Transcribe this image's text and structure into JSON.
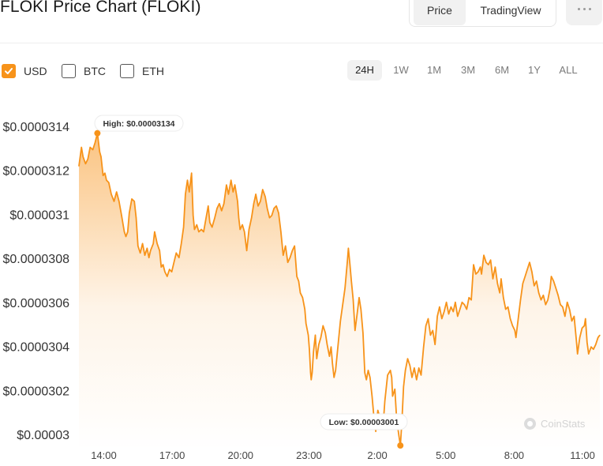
{
  "header": {
    "title": "FLOKI Price Chart (FLOKI)",
    "view_tabs": [
      {
        "label": "Price",
        "active": true
      },
      {
        "label": "TradingView",
        "active": false
      }
    ],
    "more_icon": "more-dots-icon"
  },
  "currencies": [
    {
      "label": "USD",
      "checked": true
    },
    {
      "label": "BTC",
      "checked": false
    },
    {
      "label": "ETH",
      "checked": false
    }
  ],
  "ranges": [
    {
      "label": "24H",
      "active": true
    },
    {
      "label": "1W",
      "active": false
    },
    {
      "label": "1M",
      "active": false
    },
    {
      "label": "3M",
      "active": false
    },
    {
      "label": "6M",
      "active": false
    },
    {
      "label": "1Y",
      "active": false
    },
    {
      "label": "ALL",
      "active": false
    }
  ],
  "watermark": "CoinStats",
  "colors": {
    "line": "#f7931a",
    "checkbox": "#f7931a",
    "active_bg": "#f1f1f1"
  },
  "chart_data": {
    "type": "area",
    "title": "",
    "xlabel": "",
    "ylabel": "",
    "y_tick_labels": [
      "$0.0000314",
      "$0.0000312",
      "$0.000031",
      "$0.0000308",
      "$0.0000306",
      "$0.0000304",
      "$0.0000302",
      "$0.00003"
    ],
    "y_ticks": [
      3.14e-05,
      3.12e-05,
      3.1e-05,
      3.08e-05,
      3.06e-05,
      3.04e-05,
      3.02e-05,
      3e-05
    ],
    "x_tick_labels": [
      "14:00",
      "17:00",
      "20:00",
      "23:00",
      "2:00",
      "5:00",
      "8:00",
      "11:00"
    ],
    "x_ticks": [
      14,
      17,
      20,
      23,
      26,
      29,
      32,
      35
    ],
    "xlim": [
      12.91,
      35.76
    ],
    "ylim": [
      2.999e-05,
      3.147e-05
    ],
    "grid": false,
    "annotations": {
      "high": {
        "label": "High: $0.00003134",
        "x": 13.72,
        "y": 3.134e-05
      },
      "low": {
        "label": "Low: $0.00003001",
        "x": 27.01,
        "y": 3.001e-05
      }
    },
    "series": [
      {
        "values": [
          [
            12.91,
            3.12e-05
          ],
          [
            13.02,
            3.128e-05
          ],
          [
            13.09,
            3.124e-05
          ],
          [
            13.2,
            3.121e-05
          ],
          [
            13.3,
            3.123e-05
          ],
          [
            13.4,
            3.128e-05
          ],
          [
            13.52,
            3.127e-05
          ],
          [
            13.62,
            3.13e-05
          ],
          [
            13.72,
            3.134e-05
          ],
          [
            13.82,
            3.126e-05
          ],
          [
            13.88,
            3.124e-05
          ],
          [
            13.97,
            3.116e-05
          ],
          [
            14.05,
            3.117e-05
          ],
          [
            14.12,
            3.114e-05
          ],
          [
            14.22,
            3.113e-05
          ],
          [
            14.33,
            3.108e-05
          ],
          [
            14.45,
            3.105e-05
          ],
          [
            14.56,
            3.109e-05
          ],
          [
            14.67,
            3.105e-05
          ],
          [
            14.78,
            3.099e-05
          ],
          [
            14.9,
            3.092e-05
          ],
          [
            14.97,
            3.09e-05
          ],
          [
            15.05,
            3.092e-05
          ],
          [
            15.12,
            3.1e-05
          ],
          [
            15.23,
            3.106e-05
          ],
          [
            15.34,
            3.105e-05
          ],
          [
            15.42,
            3.098e-05
          ],
          [
            15.5,
            3.086e-05
          ],
          [
            15.6,
            3.083e-05
          ],
          [
            15.7,
            3.087e-05
          ],
          [
            15.8,
            3.082e-05
          ],
          [
            15.9,
            3.085e-05
          ],
          [
            15.98,
            3.081e-05
          ],
          [
            16.05,
            3.084e-05
          ],
          [
            16.17,
            3.087e-05
          ],
          [
            16.23,
            3.092e-05
          ],
          [
            16.34,
            3.087e-05
          ],
          [
            16.45,
            3.084e-05
          ],
          [
            16.52,
            3.077e-05
          ],
          [
            16.6,
            3.078e-05
          ],
          [
            16.68,
            3.075e-05
          ],
          [
            16.78,
            3.073e-05
          ],
          [
            16.88,
            3.076e-05
          ],
          [
            16.98,
            3.075e-05
          ],
          [
            17.08,
            3.079e-05
          ],
          [
            17.18,
            3.083e-05
          ],
          [
            17.3,
            3.081e-05
          ],
          [
            17.4,
            3.087e-05
          ],
          [
            17.5,
            3.094e-05
          ],
          [
            17.58,
            3.108e-05
          ],
          [
            17.67,
            3.114e-05
          ],
          [
            17.75,
            3.109e-05
          ],
          [
            17.85,
            3.117e-05
          ],
          [
            17.92,
            3.099e-05
          ],
          [
            17.98,
            3.093e-05
          ],
          [
            18.08,
            3.095e-05
          ],
          [
            18.17,
            3.092e-05
          ],
          [
            18.28,
            3.093e-05
          ],
          [
            18.38,
            3.092e-05
          ],
          [
            18.47,
            3.097e-05
          ],
          [
            18.58,
            3.103e-05
          ],
          [
            18.65,
            3.096e-05
          ],
          [
            18.75,
            3.094e-05
          ],
          [
            18.87,
            3.098e-05
          ],
          [
            18.97,
            3.102e-05
          ],
          [
            19.07,
            3.104e-05
          ],
          [
            19.17,
            3.101e-05
          ],
          [
            19.27,
            3.104e-05
          ],
          [
            19.38,
            3.112e-05
          ],
          [
            19.47,
            3.108e-05
          ],
          [
            19.58,
            3.114e-05
          ],
          [
            19.67,
            3.109e-05
          ],
          [
            19.75,
            3.112e-05
          ],
          [
            19.87,
            3.105e-05
          ],
          [
            19.92,
            3.098e-05
          ],
          [
            19.98,
            3.093e-05
          ],
          [
            20.08,
            3.095e-05
          ],
          [
            20.17,
            3.092e-05
          ],
          [
            20.27,
            3.084e-05
          ],
          [
            20.37,
            3.093e-05
          ],
          [
            20.48,
            3.098e-05
          ],
          [
            20.58,
            3.104e-05
          ],
          [
            20.67,
            3.108e-05
          ],
          [
            20.77,
            3.103e-05
          ],
          [
            20.87,
            3.105e-05
          ],
          [
            20.97,
            3.11e-05
          ],
          [
            21.08,
            3.107e-05
          ],
          [
            21.17,
            3.102e-05
          ],
          [
            21.27,
            3.098e-05
          ],
          [
            21.37,
            3.099e-05
          ],
          [
            21.47,
            3.102e-05
          ],
          [
            21.57,
            3.103e-05
          ],
          [
            21.67,
            3.1e-05
          ],
          [
            21.77,
            3.092e-05
          ],
          [
            21.87,
            3.082e-05
          ],
          [
            21.97,
            3.086e-05
          ],
          [
            22.07,
            3.079e-05
          ],
          [
            22.17,
            3.081e-05
          ],
          [
            22.27,
            3.084e-05
          ],
          [
            22.37,
            3.086e-05
          ],
          [
            22.47,
            3.073e-05
          ],
          [
            22.55,
            3.071e-05
          ],
          [
            22.62,
            3.066e-05
          ],
          [
            22.72,
            3.064e-05
          ],
          [
            22.82,
            3.059e-05
          ],
          [
            22.87,
            3.053e-05
          ],
          [
            22.97,
            3.048e-05
          ],
          [
            23.02,
            3.042e-05
          ],
          [
            23.07,
            3.032e-05
          ],
          [
            23.1,
            3.029e-05
          ],
          [
            23.14,
            3.032e-05
          ],
          [
            23.2,
            3.041e-05
          ],
          [
            23.28,
            3.048e-05
          ],
          [
            23.34,
            3.038e-05
          ],
          [
            23.43,
            3.044e-05
          ],
          [
            23.52,
            3.047e-05
          ],
          [
            23.62,
            3.052e-05
          ],
          [
            23.72,
            3.049e-05
          ],
          [
            23.8,
            3.044e-05
          ],
          [
            23.9,
            3.039e-05
          ],
          [
            23.97,
            3.043e-05
          ],
          [
            24.03,
            3.036e-05
          ],
          [
            24.1,
            3.03e-05
          ],
          [
            24.17,
            3.033e-05
          ],
          [
            24.27,
            3.043e-05
          ],
          [
            24.38,
            3.054e-05
          ],
          [
            24.48,
            3.061e-05
          ],
          [
            24.58,
            3.068e-05
          ],
          [
            24.68,
            3.079e-05
          ],
          [
            24.73,
            3.085e-05
          ],
          [
            24.8,
            3.078e-05
          ],
          [
            24.86,
            3.071e-05
          ],
          [
            24.94,
            3.063e-05
          ],
          [
            25.02,
            3.05e-05
          ],
          [
            25.1,
            3.056e-05
          ],
          [
            25.2,
            3.064e-05
          ],
          [
            25.28,
            3.059e-05
          ],
          [
            25.37,
            3.049e-05
          ],
          [
            25.45,
            3.032e-05
          ],
          [
            25.52,
            3.029e-05
          ],
          [
            25.6,
            3.033e-05
          ],
          [
            25.68,
            3.03e-05
          ],
          [
            25.77,
            3.022e-05
          ],
          [
            25.87,
            3.011e-05
          ],
          [
            25.93,
            3.007e-05
          ],
          [
            26.02,
            3.016e-05
          ],
          [
            26.08,
            3.014e-05
          ],
          [
            26.18,
            3.008e-05
          ],
          [
            26.25,
            3.009e-05
          ],
          [
            26.33,
            3.02e-05
          ],
          [
            26.45,
            3.031e-05
          ],
          [
            26.57,
            3.033e-05
          ],
          [
            26.63,
            3.03e-05
          ],
          [
            26.67,
            3.022e-05
          ],
          [
            26.77,
            3.025e-05
          ],
          [
            26.85,
            3.012e-05
          ],
          [
            26.95,
            3.005e-05
          ],
          [
            27.01,
            3.001e-05
          ],
          [
            27.08,
            3.012e-05
          ],
          [
            27.15,
            3.026e-05
          ],
          [
            27.23,
            3.033e-05
          ],
          [
            27.33,
            3.038e-05
          ],
          [
            27.43,
            3.035e-05
          ],
          [
            27.52,
            3.03e-05
          ],
          [
            27.62,
            3.034e-05
          ],
          [
            27.72,
            3.029e-05
          ],
          [
            27.82,
            3.034e-05
          ],
          [
            27.92,
            3.031e-05
          ],
          [
            28.03,
            3.043e-05
          ],
          [
            28.13,
            3.052e-05
          ],
          [
            28.23,
            3.055e-05
          ],
          [
            28.33,
            3.048e-05
          ],
          [
            28.43,
            3.05e-05
          ],
          [
            28.53,
            3.044e-05
          ],
          [
            28.63,
            3.056e-05
          ],
          [
            28.73,
            3.06e-05
          ],
          [
            28.83,
            3.055e-05
          ],
          [
            28.93,
            3.058e-05
          ],
          [
            29.03,
            3.062e-05
          ],
          [
            29.13,
            3.057e-05
          ],
          [
            29.23,
            3.06e-05
          ],
          [
            29.33,
            3.058e-05
          ],
          [
            29.42,
            3.062e-05
          ],
          [
            29.52,
            3.056e-05
          ],
          [
            29.62,
            3.059e-05
          ],
          [
            29.72,
            3.062e-05
          ],
          [
            29.82,
            3.061e-05
          ],
          [
            29.92,
            3.059e-05
          ],
          [
            30.02,
            3.064e-05
          ],
          [
            30.12,
            3.063e-05
          ],
          [
            30.22,
            3.078e-05
          ],
          [
            30.32,
            3.074e-05
          ],
          [
            30.42,
            3.075e-05
          ],
          [
            30.52,
            3.077e-05
          ],
          [
            30.57,
            3.074e-05
          ],
          [
            30.67,
            3.082e-05
          ],
          [
            30.77,
            3.079e-05
          ],
          [
            30.87,
            3.078e-05
          ],
          [
            30.97,
            3.08e-05
          ],
          [
            31.07,
            3.072e-05
          ],
          [
            31.17,
            3.077e-05
          ],
          [
            31.27,
            3.07e-05
          ],
          [
            31.37,
            3.066e-05
          ],
          [
            31.43,
            3.072e-05
          ],
          [
            31.53,
            3.064e-05
          ],
          [
            31.63,
            3.059e-05
          ],
          [
            31.73,
            3.06e-05
          ],
          [
            31.83,
            3.055e-05
          ],
          [
            31.93,
            3.052e-05
          ],
          [
            32.03,
            3.05e-05
          ],
          [
            32.08,
            3.047e-05
          ],
          [
            32.18,
            3.055e-05
          ],
          [
            32.28,
            3.063e-05
          ],
          [
            32.38,
            3.07e-05
          ],
          [
            32.48,
            3.073e-05
          ],
          [
            32.58,
            3.076e-05
          ],
          [
            32.68,
            3.079e-05
          ],
          [
            32.78,
            3.075e-05
          ],
          [
            32.88,
            3.069e-05
          ],
          [
            32.98,
            3.071e-05
          ],
          [
            33.08,
            3.066e-05
          ],
          [
            33.18,
            3.063e-05
          ],
          [
            33.28,
            3.065e-05
          ],
          [
            33.38,
            3.061e-05
          ],
          [
            33.48,
            3.063e-05
          ],
          [
            33.58,
            3.068e-05
          ],
          [
            33.63,
            3.073e-05
          ],
          [
            33.73,
            3.071e-05
          ],
          [
            33.83,
            3.068e-05
          ],
          [
            33.93,
            3.065e-05
          ],
          [
            34.03,
            3.061e-05
          ],
          [
            34.13,
            3.06e-05
          ],
          [
            34.23,
            3.056e-05
          ],
          [
            34.33,
            3.062e-05
          ],
          [
            34.43,
            3.059e-05
          ],
          [
            34.53,
            3.054e-05
          ],
          [
            34.63,
            3.056e-05
          ],
          [
            34.73,
            3.046e-05
          ],
          [
            34.78,
            3.04e-05
          ],
          [
            34.88,
            3.047e-05
          ],
          [
            34.98,
            3.051e-05
          ],
          [
            35.08,
            3.052e-05
          ],
          [
            35.13,
            3.055e-05
          ],
          [
            35.2,
            3.045e-05
          ],
          [
            35.27,
            3.04e-05
          ],
          [
            35.38,
            3.043e-05
          ],
          [
            35.48,
            3.042e-05
          ],
          [
            35.58,
            3.044e-05
          ],
          [
            35.68,
            3.047e-05
          ],
          [
            35.76,
            3.048e-05
          ]
        ]
      }
    ]
  }
}
